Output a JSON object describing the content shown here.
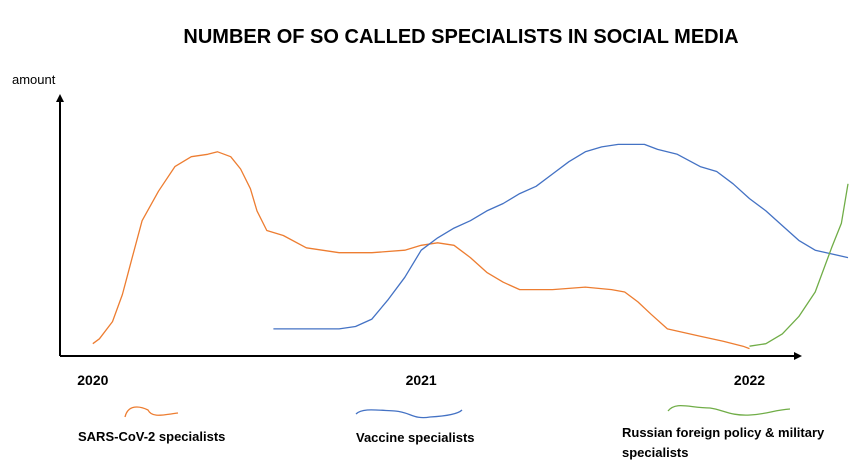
{
  "chart_data": {
    "type": "line",
    "title": "NUMBER OF SO CALLED SPECIALISTS IN SOCIAL MEDIA",
    "ylabel": "amount",
    "xlabel": "",
    "x_ticks": [
      "2020",
      "2021",
      "2022"
    ],
    "x_tick_values": [
      2020,
      2021,
      2022
    ],
    "xlim": [
      2019.9,
      2022.3
    ],
    "ylim": [
      0,
      100
    ],
    "grid": false,
    "legend_position": "bottom",
    "series": [
      {
        "name": "SARS-CoV-2 specialists",
        "color": "#ed7d31",
        "points": [
          [
            2020.0,
            5
          ],
          [
            2020.02,
            7
          ],
          [
            2020.06,
            14
          ],
          [
            2020.09,
            25
          ],
          [
            2020.12,
            40
          ],
          [
            2020.15,
            55
          ],
          [
            2020.2,
            67
          ],
          [
            2020.25,
            77
          ],
          [
            2020.3,
            81
          ],
          [
            2020.35,
            82
          ],
          [
            2020.38,
            83
          ],
          [
            2020.42,
            81
          ],
          [
            2020.45,
            76
          ],
          [
            2020.48,
            68
          ],
          [
            2020.5,
            59
          ],
          [
            2020.53,
            51
          ],
          [
            2020.58,
            49
          ],
          [
            2020.65,
            44
          ],
          [
            2020.75,
            42
          ],
          [
            2020.85,
            42
          ],
          [
            2020.95,
            43
          ],
          [
            2021.0,
            45
          ],
          [
            2021.05,
            46
          ],
          [
            2021.1,
            45
          ],
          [
            2021.15,
            40
          ],
          [
            2021.2,
            34
          ],
          [
            2021.25,
            30
          ],
          [
            2021.3,
            27
          ],
          [
            2021.4,
            27
          ],
          [
            2021.5,
            28
          ],
          [
            2021.58,
            27
          ],
          [
            2021.62,
            26
          ],
          [
            2021.66,
            22
          ],
          [
            2021.7,
            17
          ],
          [
            2021.75,
            11
          ],
          [
            2021.85,
            8
          ],
          [
            2021.92,
            6
          ],
          [
            2021.98,
            4
          ],
          [
            2022.0,
            3
          ]
        ]
      },
      {
        "name": "Vaccine specialists",
        "color": "#4472c4",
        "points": [
          [
            2020.55,
            11
          ],
          [
            2020.65,
            11
          ],
          [
            2020.75,
            11
          ],
          [
            2020.8,
            12
          ],
          [
            2020.85,
            15
          ],
          [
            2020.9,
            23
          ],
          [
            2020.95,
            32
          ],
          [
            2021.0,
            43
          ],
          [
            2021.05,
            48
          ],
          [
            2021.1,
            52
          ],
          [
            2021.15,
            55
          ],
          [
            2021.2,
            59
          ],
          [
            2021.25,
            62
          ],
          [
            2021.3,
            66
          ],
          [
            2021.35,
            69
          ],
          [
            2021.4,
            74
          ],
          [
            2021.45,
            79
          ],
          [
            2021.5,
            83
          ],
          [
            2021.55,
            85
          ],
          [
            2021.6,
            86
          ],
          [
            2021.68,
            86
          ],
          [
            2021.72,
            84
          ],
          [
            2021.78,
            82
          ],
          [
            2021.85,
            77
          ],
          [
            2021.9,
            75
          ],
          [
            2021.95,
            70
          ],
          [
            2022.0,
            64
          ],
          [
            2022.05,
            59
          ],
          [
            2022.1,
            53
          ],
          [
            2022.15,
            47
          ],
          [
            2022.2,
            43
          ],
          [
            2022.3,
            40
          ]
        ]
      },
      {
        "name": "Russian foreign policy & military specialists",
        "color": "#70ad47",
        "points": [
          [
            2022.0,
            4
          ],
          [
            2022.05,
            5
          ],
          [
            2022.1,
            9
          ],
          [
            2022.15,
            16
          ],
          [
            2022.2,
            26
          ],
          [
            2022.25,
            44
          ],
          [
            2022.28,
            54
          ],
          [
            2022.3,
            70
          ]
        ]
      }
    ]
  }
}
